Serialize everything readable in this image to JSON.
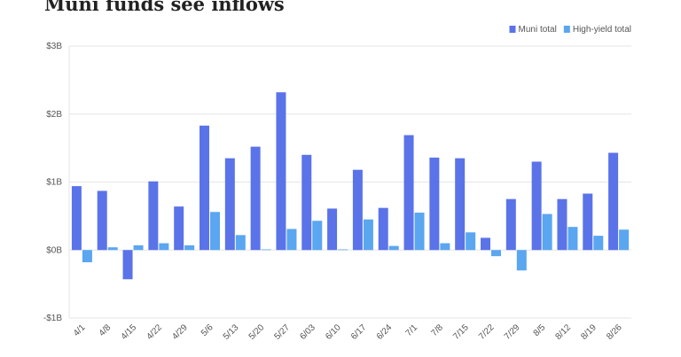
{
  "chart_data": {
    "type": "bar",
    "title": "Muni funds see inflows",
    "categories": [
      "4/1",
      "4/8",
      "4/15",
      "4/22",
      "4/29",
      "5/6",
      "5/13",
      "5/20",
      "5/27",
      "6/03",
      "6/10",
      "6/17",
      "6/24",
      "7/1",
      "7/8",
      "7/15",
      "7/22",
      "7/29",
      "8/5",
      "8/12",
      "8/19",
      "8/26"
    ],
    "series": [
      {
        "name": "Muni total",
        "color": "#5b73e8",
        "values": [
          0.94,
          0.87,
          -0.43,
          1.01,
          0.64,
          1.83,
          1.35,
          1.52,
          2.32,
          1.4,
          0.61,
          1.18,
          0.62,
          1.69,
          1.36,
          1.35,
          0.18,
          0.75,
          1.3,
          0.75,
          0.83,
          1.43
        ]
      },
      {
        "name": "High-yield total",
        "color": "#5aa6f0",
        "values": [
          -0.18,
          0.04,
          0.07,
          0.1,
          0.07,
          0.56,
          0.22,
          0.01,
          0.31,
          0.43,
          0.01,
          0.45,
          0.06,
          0.55,
          0.1,
          0.26,
          -0.09,
          -0.3,
          0.53,
          0.34,
          0.21,
          0.3
        ]
      }
    ],
    "ylim": [
      -1,
      3
    ],
    "yticks": [
      {
        "value": -1,
        "label": "-$1B"
      },
      {
        "value": 0,
        "label": "$0B"
      },
      {
        "value": 1,
        "label": "$1B"
      },
      {
        "value": 2,
        "label": "$2B"
      },
      {
        "value": 3,
        "label": "$3B"
      }
    ],
    "grid": true,
    "legend": "top-right"
  }
}
